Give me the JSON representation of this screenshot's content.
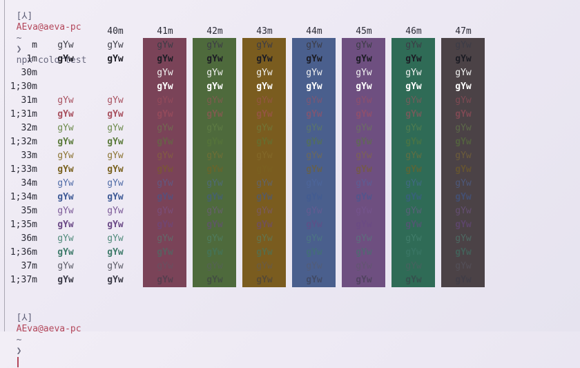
{
  "prompt_top": {
    "bracket": "[⅄]",
    "user": "AEva@aeva-pc",
    "tilde": "~",
    "chevron": "❯",
    "command": "npx colortest"
  },
  "prompt_bottom": {
    "bracket": "[⅄]",
    "user": "AEva@aeva-pc",
    "tilde": "~",
    "chevron": "❯"
  },
  "sample_text": "gYw",
  "bg_headers": [
    "40m",
    "41m",
    "42m",
    "43m",
    "44m",
    "45m",
    "46m",
    "47m"
  ],
  "bg_colors": [
    "#7a4358",
    "#4e6a3c",
    "#7a5c1f",
    "#4a5f8d",
    "#6e4f80",
    "#2f6b56",
    "#4b4246"
  ],
  "row_labels": [
    "m",
    "1m",
    "30m",
    "1;30m",
    "31m",
    "1;31m",
    "32m",
    "1;32m",
    "33m",
    "1;33m",
    "34m",
    "1;34m",
    "35m",
    "1;35m",
    "36m",
    "1;36m",
    "37m",
    "1;37m"
  ],
  "fg_colors": [
    "#3c3c46",
    "#1c1c24",
    "#f2f2f2",
    "#ffffff",
    "#a8505e",
    "#a8505e",
    "#6b8a4a",
    "#5a7a3a",
    "#8a7230",
    "#7a6220",
    "#4e6aa6",
    "#3e5a96",
    "#7a5896",
    "#6a4886",
    "#4e8a7a",
    "#3e7a6a",
    "#5a5a66",
    "#3a3a46"
  ]
}
